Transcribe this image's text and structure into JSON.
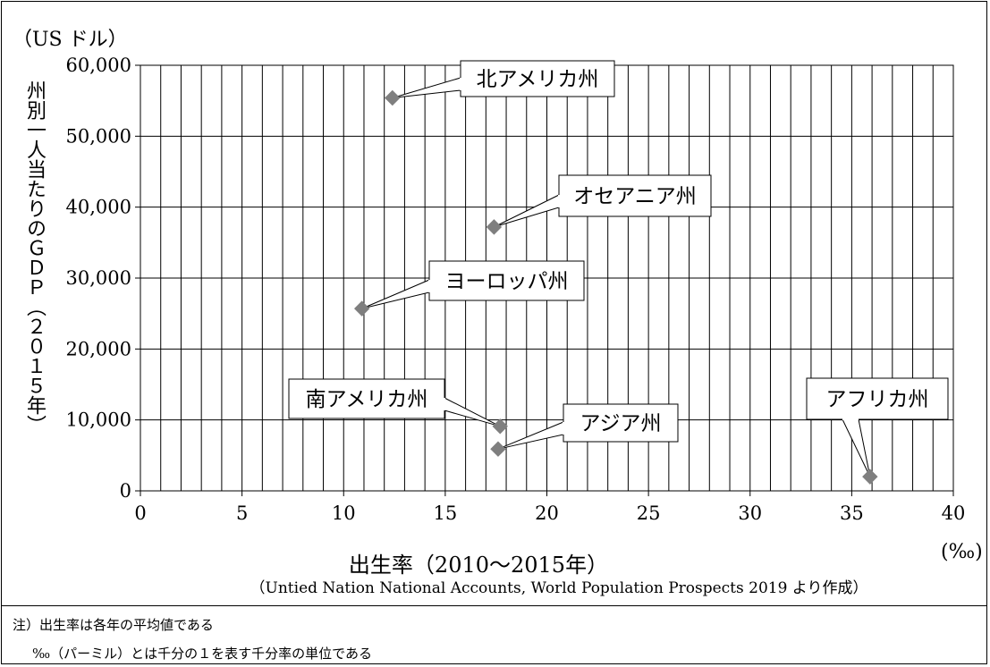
{
  "chart_data": {
    "type": "scatter",
    "ylabel_unit": "（US ドル）",
    "ylabel": "州別一人当たりのＧＤＰ（２０１５年）",
    "xlabel": "出生率（2010〜2015年）",
    "xlabel_unit": "(‰)",
    "xlim": [
      0,
      40
    ],
    "ylim": [
      0,
      60000
    ],
    "x_ticks": [
      0,
      5,
      10,
      15,
      20,
      25,
      30,
      35,
      40
    ],
    "y_ticks": [
      0,
      10000,
      20000,
      30000,
      40000,
      50000,
      60000
    ],
    "x_tick_labels": [
      "0",
      "5",
      "10",
      "15",
      "20",
      "25",
      "30",
      "35",
      "40"
    ],
    "y_tick_labels": [
      "0",
      "10,000",
      "20,000",
      "30,000",
      "40,000",
      "50,000",
      "60,000"
    ],
    "x_minor_step": 1,
    "grid": true,
    "marker_color": "#7f7f7f",
    "points": [
      {
        "label": "北アメリカ州",
        "x": 12.4,
        "y": 55400
      },
      {
        "label": "オセアニア州",
        "x": 17.4,
        "y": 37200
      },
      {
        "label": "ヨーロッパ州",
        "x": 10.9,
        "y": 25700
      },
      {
        "label": "南アメリカ州",
        "x": 17.7,
        "y": 9100
      },
      {
        "label": "アジア州",
        "x": 17.6,
        "y": 5900
      },
      {
        "label": "アフリカ州",
        "x": 35.9,
        "y": 2000
      }
    ],
    "source": "（Untied Nation National Accounts, World Population Prospects 2019 より作成）"
  },
  "notes": {
    "note1": "注）出生率は各年の平均値である",
    "note2": "‰（パーミル）とは千分の１を表す千分率の単位である"
  }
}
